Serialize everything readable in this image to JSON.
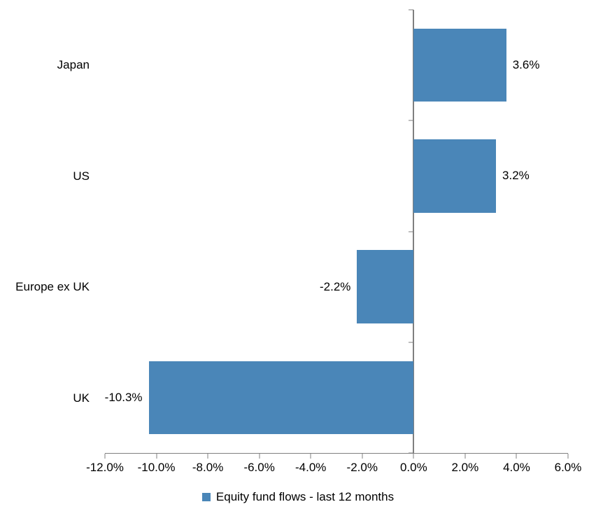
{
  "chart_data": {
    "type": "bar",
    "orientation": "horizontal",
    "categories": [
      "Japan",
      "US",
      "Europe ex UK",
      "UK"
    ],
    "values": [
      3.6,
      3.2,
      -2.2,
      -10.3
    ],
    "value_labels": [
      "3.6%",
      "3.2%",
      "-2.2%",
      "-10.3%"
    ],
    "xlim": [
      -12,
      6
    ],
    "x_ticks": [
      -12,
      -10,
      -8,
      -6,
      -4,
      -2,
      0,
      2,
      4,
      6
    ],
    "x_tick_labels": [
      "-12.0%",
      "-10.0%",
      "-8.0%",
      "-6.0%",
      "-4.0%",
      "-2.0%",
      "0.0%",
      "2.0%",
      "4.0%",
      "6.0%"
    ],
    "title": "",
    "xlabel": "",
    "ylabel": "",
    "grid": false,
    "legend_position": "bottom",
    "legend": "Equity fund flows - last 12 months",
    "bar_color": "#4a86b8",
    "axis_color": "#7f7f7f"
  }
}
